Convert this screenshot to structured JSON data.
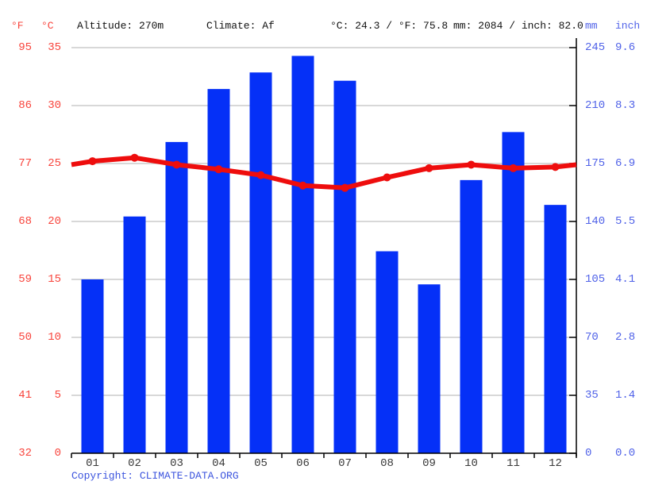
{
  "header": {
    "unit_f_label": "°F",
    "unit_c_label": "°C",
    "altitude": "Altitude: 270m",
    "climate": "Climate: Af",
    "temperature_summary": "°C: 24.3 / °F: 75.8",
    "precipitation_summary": "mm: 2084 / inch: 82.0",
    "unit_mm_label": "mm",
    "unit_inch_label": "inch"
  },
  "axes": {
    "temp_f_ticks": [
      "95",
      "86",
      "77",
      "68",
      "59",
      "50",
      "41",
      "32"
    ],
    "temp_c_ticks": [
      "35",
      "30",
      "25",
      "20",
      "15",
      "10",
      "5",
      "0"
    ],
    "precip_mm_ticks": [
      "245",
      "210",
      "175",
      "140",
      "105",
      "70",
      "35",
      "0"
    ],
    "precip_inch_ticks": [
      "9.6",
      "8.3",
      "6.9",
      "5.5",
      "4.1",
      "2.8",
      "1.4",
      "0.0"
    ]
  },
  "chart_data": {
    "type": "bar",
    "subtype": "climate combo: precipitation bars + temperature line",
    "categories": [
      "01",
      "02",
      "03",
      "04",
      "05",
      "06",
      "07",
      "08",
      "09",
      "10",
      "11",
      "12"
    ],
    "series": [
      {
        "name": "Precipitation (mm)",
        "type": "bar",
        "axis": "mm",
        "values": [
          105,
          143,
          188,
          220,
          230,
          240,
          225,
          122,
          102,
          165,
          194,
          150
        ]
      },
      {
        "name": "Temperature (°C)",
        "type": "line",
        "axis": "celsius",
        "values": [
          25.2,
          25.5,
          24.9,
          24.5,
          24.0,
          23.1,
          22.9,
          23.8,
          24.6,
          24.9,
          24.6,
          24.7
        ]
      }
    ],
    "ylim_c": [
      0,
      35
    ],
    "ylim_mm": [
      0,
      245
    ],
    "grid": true,
    "legend": "none",
    "edge_temps_c": [
      24.9,
      24.9
    ]
  },
  "footer": {
    "copyright_label": "Copyright:",
    "copyright_link": "CLIMATE-DATA.ORG"
  },
  "colors": {
    "bar_blue": "#0530f7",
    "line_red": "#ee0d0d",
    "temp_label_red": "#f8443c",
    "precip_label_blue": "#5062e8",
    "copyright_blue": "#3d55de",
    "header_text": "#111111",
    "month_label": "#3a3a3a",
    "gridline": "#cccccc",
    "axis_black": "#000000",
    "background": "#ffffff"
  }
}
